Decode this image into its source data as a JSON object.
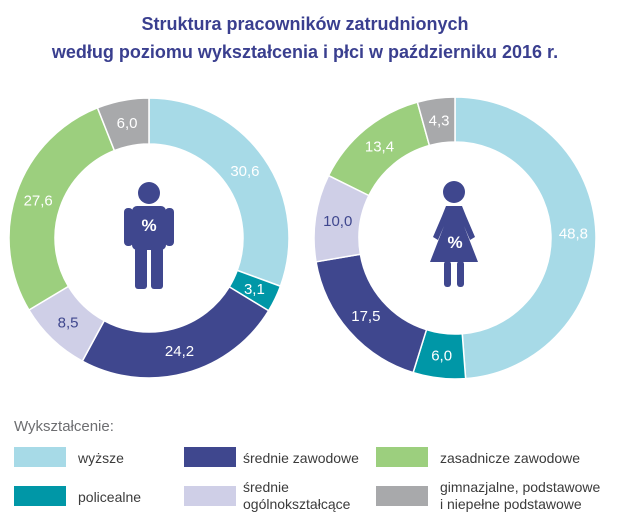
{
  "chart_data": {
    "type": "donut",
    "title": [
      "Struktura pracowników zatrudnionych",
      "według poziomu wykształcenia i płci w październiku 2016 r."
    ],
    "categories": [
      "wyższe",
      "policealne",
      "średnie zawodowe",
      "średnie ogólnokształcące",
      "zasadnicze zawodowe",
      "gimnazjalne, podstawowe i niepełne podstawowe"
    ],
    "colors": [
      "#a7dae7",
      "#0097a7",
      "#3f478e",
      "#cfcfe7",
      "#9ccf7e",
      "#a8a9ab"
    ],
    "charts": [
      {
        "name": "men",
        "icon": "male-icon",
        "center_label": "%",
        "values": [
          30.6,
          3.1,
          24.2,
          8.5,
          27.6,
          6.0
        ],
        "labels": [
          "30,6",
          "3,1",
          "24,2",
          "8,5",
          "27,6",
          "6,0"
        ]
      },
      {
        "name": "women",
        "icon": "female-icon",
        "center_label": "%",
        "values": [
          48.8,
          6.0,
          17.5,
          10.0,
          13.4,
          4.3
        ],
        "labels": [
          "48,8",
          "6,0",
          "17,5",
          "10,0",
          "13,4",
          "4,3"
        ]
      }
    ]
  },
  "legend": {
    "title": "Wykształcenie:",
    "items": [
      "wyższe",
      "policealne",
      "średnie zawodowe",
      [
        "średnie",
        "ogólnokształcące"
      ],
      "zasadnicze zawodowe",
      [
        "gimnazjalne, podstawowe",
        "i niepełne podstawowe"
      ]
    ]
  }
}
